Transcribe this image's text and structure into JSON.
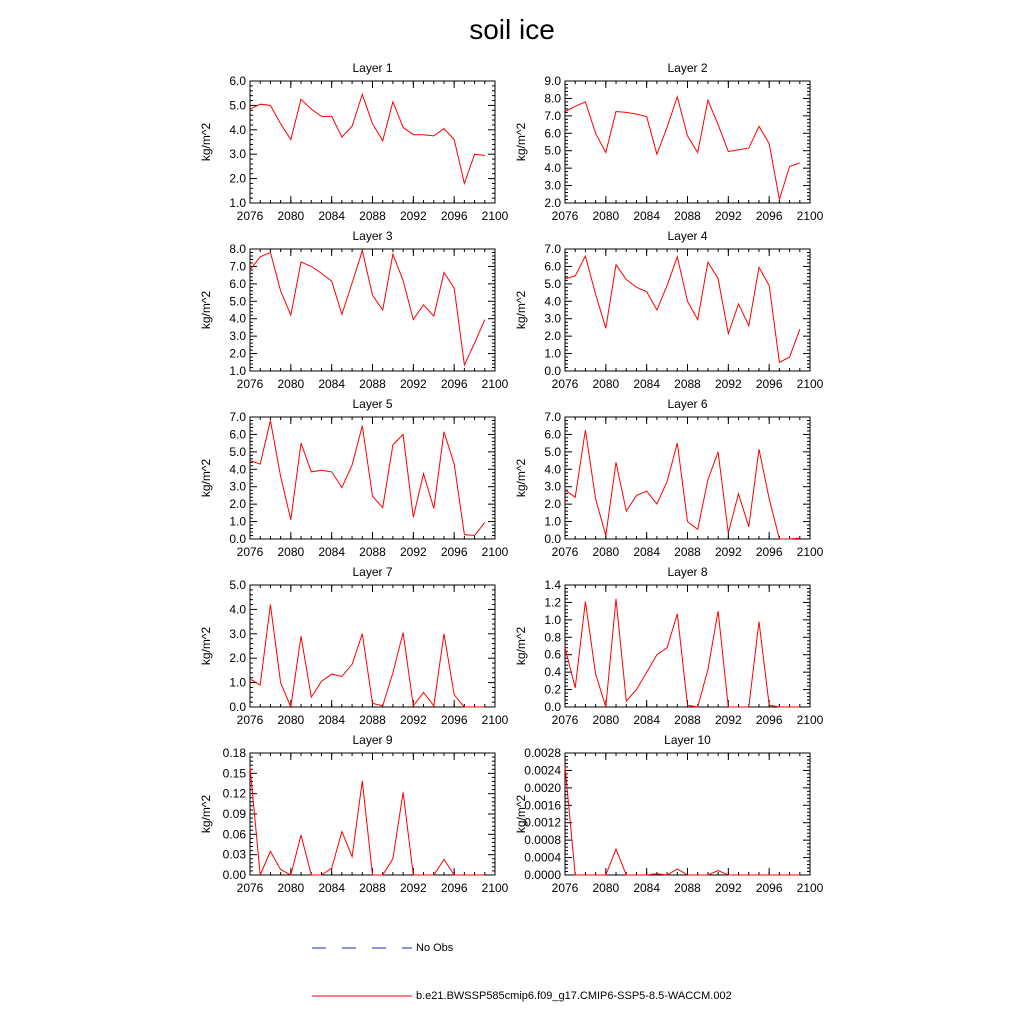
{
  "title": "soil ice",
  "colors": {
    "model": "#ff0000",
    "obs": "#1f2fb8",
    "axis": "#000000"
  },
  "legend": {
    "obs_label": "No Obs",
    "model_label": "b.e21.BWSSP585cmip6.f09_g17.CMIP6-SSP5-8.5-WACCM.002"
  },
  "x_ticks": [
    "2076",
    "2080",
    "2084",
    "2088",
    "2092",
    "2096",
    "2100"
  ],
  "chart_data": [
    {
      "type": "line",
      "title": "Layer 1",
      "ylabel": "kg/m^2",
      "xlim": [
        2076,
        2100
      ],
      "ylim": [
        1,
        6
      ],
      "yticks": [
        1,
        2,
        3,
        4,
        5,
        6
      ],
      "ytick_labels": [
        "1.0",
        "2.0",
        "3.0",
        "4.0",
        "5.0",
        "6.0"
      ],
      "x": [
        2076,
        2077,
        2078,
        2079,
        2080,
        2081,
        2082,
        2083,
        2084,
        2085,
        2086,
        2087,
        2088,
        2089,
        2090,
        2091,
        2092,
        2093,
        2094,
        2095,
        2096,
        2097,
        2098,
        2099
      ],
      "values": [
        4.85,
        5.05,
        5.0,
        4.25,
        3.6,
        5.25,
        4.85,
        4.55,
        4.55,
        3.7,
        4.15,
        5.45,
        4.25,
        3.55,
        5.15,
        4.1,
        3.8,
        3.8,
        3.75,
        4.05,
        3.6,
        1.8,
        3.0,
        2.95
      ]
    },
    {
      "type": "line",
      "title": "Layer 2",
      "ylabel": "kg/m^2",
      "xlim": [
        2076,
        2100
      ],
      "ylim": [
        2,
        9
      ],
      "yticks": [
        2,
        3,
        4,
        5,
        6,
        7,
        8,
        9
      ],
      "ytick_labels": [
        "2.0",
        "3.0",
        "4.0",
        "5.0",
        "6.0",
        "7.0",
        "8.0",
        "9.0"
      ],
      "x": [
        2076,
        2077,
        2078,
        2079,
        2080,
        2081,
        2082,
        2083,
        2084,
        2085,
        2086,
        2087,
        2088,
        2089,
        2090,
        2091,
        2092,
        2093,
        2094,
        2095,
        2096,
        2097,
        2098,
        2099
      ],
      "values": [
        7.25,
        7.55,
        7.8,
        6.0,
        4.9,
        7.25,
        7.2,
        7.1,
        6.95,
        4.8,
        6.35,
        8.1,
        5.85,
        4.9,
        7.9,
        6.5,
        4.95,
        5.05,
        5.15,
        6.4,
        5.4,
        2.2,
        4.1,
        4.3
      ]
    },
    {
      "type": "line",
      "title": "Layer 3",
      "ylabel": "kg/m^2",
      "xlim": [
        2076,
        2100
      ],
      "ylim": [
        1,
        8
      ],
      "yticks": [
        1,
        2,
        3,
        4,
        5,
        6,
        7,
        8
      ],
      "ytick_labels": [
        "1.0",
        "2.0",
        "3.0",
        "4.0",
        "5.0",
        "6.0",
        "7.0",
        "8.0"
      ],
      "x": [
        2076,
        2077,
        2078,
        2079,
        2080,
        2081,
        2082,
        2083,
        2084,
        2085,
        2086,
        2087,
        2088,
        2089,
        2090,
        2091,
        2092,
        2093,
        2094,
        2095,
        2096,
        2097,
        2098,
        2099
      ],
      "values": [
        6.8,
        7.55,
        7.8,
        5.6,
        4.2,
        7.25,
        7.0,
        6.6,
        6.15,
        4.25,
        6.05,
        7.9,
        5.35,
        4.5,
        7.7,
        6.2,
        3.95,
        4.8,
        4.15,
        6.65,
        5.75,
        1.35,
        2.6,
        3.95
      ]
    },
    {
      "type": "line",
      "title": "Layer 4",
      "ylabel": "kg/m^2",
      "xlim": [
        2076,
        2100
      ],
      "ylim": [
        0,
        7
      ],
      "yticks": [
        0,
        1,
        2,
        3,
        4,
        5,
        6,
        7
      ],
      "ytick_labels": [
        "0.0",
        "1.0",
        "2.0",
        "3.0",
        "4.0",
        "5.0",
        "6.0",
        "7.0"
      ],
      "x": [
        2076,
        2077,
        2078,
        2079,
        2080,
        2081,
        2082,
        2083,
        2084,
        2085,
        2086,
        2087,
        2088,
        2089,
        2090,
        2091,
        2092,
        2093,
        2094,
        2095,
        2096,
        2097,
        2098,
        2099
      ],
      "values": [
        5.3,
        5.45,
        6.6,
        4.4,
        2.45,
        6.1,
        5.25,
        4.8,
        4.55,
        3.5,
        4.9,
        6.55,
        4.0,
        2.95,
        6.25,
        5.3,
        2.15,
        3.85,
        2.6,
        5.95,
        4.9,
        0.5,
        0.8,
        2.4
      ]
    },
    {
      "type": "line",
      "title": "Layer 5",
      "ylabel": "kg/m^2",
      "xlim": [
        2076,
        2100
      ],
      "ylim": [
        0,
        7
      ],
      "yticks": [
        0,
        1,
        2,
        3,
        4,
        5,
        6,
        7
      ],
      "ytick_labels": [
        "0.0",
        "1.0",
        "2.0",
        "3.0",
        "4.0",
        "5.0",
        "6.0",
        "7.0"
      ],
      "x": [
        2076,
        2077,
        2078,
        2079,
        2080,
        2081,
        2082,
        2083,
        2084,
        2085,
        2086,
        2087,
        2088,
        2089,
        2090,
        2091,
        2092,
        2093,
        2094,
        2095,
        2096,
        2097,
        2098,
        2099
      ],
      "values": [
        4.5,
        4.3,
        6.8,
        3.6,
        1.1,
        5.5,
        3.85,
        3.95,
        3.85,
        2.95,
        4.25,
        6.5,
        2.45,
        1.8,
        5.4,
        6.0,
        1.25,
        3.75,
        1.75,
        6.15,
        4.3,
        0.25,
        0.2,
        0.95
      ]
    },
    {
      "type": "line",
      "title": "Layer 6",
      "ylabel": "kg/m^2",
      "xlim": [
        2076,
        2100
      ],
      "ylim": [
        0,
        7
      ],
      "yticks": [
        0,
        1,
        2,
        3,
        4,
        5,
        6,
        7
      ],
      "ytick_labels": [
        "0.0",
        "1.0",
        "2.0",
        "3.0",
        "4.0",
        "5.0",
        "6.0",
        "7.0"
      ],
      "x": [
        2076,
        2077,
        2078,
        2079,
        2080,
        2081,
        2082,
        2083,
        2084,
        2085,
        2086,
        2087,
        2088,
        2089,
        2090,
        2091,
        2092,
        2093,
        2094,
        2095,
        2096,
        2097,
        2098,
        2099
      ],
      "values": [
        2.8,
        2.4,
        6.25,
        2.3,
        0.2,
        4.4,
        1.6,
        2.5,
        2.75,
        2.0,
        3.3,
        5.5,
        1.0,
        0.55,
        3.4,
        5.0,
        0.35,
        2.6,
        0.7,
        5.15,
        2.3,
        0.0,
        0.0,
        0.05
      ]
    },
    {
      "type": "line",
      "title": "Layer 7",
      "ylabel": "kg/m^2",
      "xlim": [
        2076,
        2100
      ],
      "ylim": [
        0,
        5
      ],
      "yticks": [
        0,
        1,
        2,
        3,
        4,
        5
      ],
      "ytick_labels": [
        "0.0",
        "1.0",
        "2.0",
        "3.0",
        "4.0",
        "5.0"
      ],
      "x": [
        2076,
        2077,
        2078,
        2079,
        2080,
        2081,
        2082,
        2083,
        2084,
        2085,
        2086,
        2087,
        2088,
        2089,
        2090,
        2091,
        2092,
        2093,
        2094,
        2095,
        2096,
        2097,
        2098,
        2099
      ],
      "values": [
        1.15,
        0.9,
        4.2,
        1.0,
        0.0,
        2.9,
        0.4,
        1.05,
        1.35,
        1.25,
        1.75,
        3.0,
        0.15,
        0.05,
        1.4,
        3.05,
        0.05,
        0.6,
        0.05,
        3.0,
        0.5,
        0.0,
        0.0,
        0.0
      ]
    },
    {
      "type": "line",
      "title": "Layer 8",
      "ylabel": "kg/m^2",
      "xlim": [
        2076,
        2100
      ],
      "ylim": [
        0,
        1.4
      ],
      "yticks": [
        0,
        0.2,
        0.4,
        0.6,
        0.8,
        1.0,
        1.2,
        1.4
      ],
      "ytick_labels": [
        "0.0",
        "0.2",
        "0.4",
        "0.6",
        "0.8",
        "1.0",
        "1.2",
        "1.4"
      ],
      "x": [
        2076,
        2077,
        2078,
        2079,
        2080,
        2081,
        2082,
        2083,
        2084,
        2085,
        2086,
        2087,
        2088,
        2089,
        2090,
        2091,
        2092,
        2093,
        2094,
        2095,
        2096,
        2097,
        2098,
        2099
      ],
      "values": [
        0.68,
        0.22,
        1.21,
        0.38,
        0.0,
        1.24,
        0.07,
        0.2,
        0.4,
        0.6,
        0.68,
        1.07,
        0.02,
        0.0,
        0.43,
        1.1,
        0.0,
        0.0,
        0.0,
        0.98,
        0.02,
        0.0,
        0.0,
        0.0
      ]
    },
    {
      "type": "line",
      "title": "Layer 9",
      "ylabel": "kg/m^2",
      "xlim": [
        2076,
        2100
      ],
      "ylim": [
        0,
        0.18
      ],
      "yticks": [
        0,
        0.03,
        0.06,
        0.09,
        0.12,
        0.15,
        0.18
      ],
      "ytick_labels": [
        "0.00",
        "0.03",
        "0.06",
        "0.09",
        "0.12",
        "0.15",
        "0.18"
      ],
      "x": [
        2076,
        2077,
        2078,
        2079,
        2080,
        2081,
        2082,
        2083,
        2084,
        2085,
        2086,
        2087,
        2088,
        2089,
        2090,
        2091,
        2092,
        2093,
        2094,
        2095,
        2096,
        2097,
        2098,
        2099
      ],
      "values": [
        0.16,
        0.0,
        0.035,
        0.008,
        0.0,
        0.059,
        0.0,
        0.0,
        0.01,
        0.064,
        0.027,
        0.139,
        0.0,
        0.0,
        0.024,
        0.122,
        0.0,
        0.0,
        0.0,
        0.023,
        0.0,
        0.0,
        0.0,
        0.0
      ]
    },
    {
      "type": "line",
      "title": "Layer 10",
      "ylabel": "kg/m^2",
      "xlim": [
        2076,
        2100
      ],
      "ylim": [
        0,
        0.0028
      ],
      "yticks": [
        0,
        0.0004,
        0.0008,
        0.0012,
        0.0016,
        0.002,
        0.0024,
        0.0028
      ],
      "ytick_labels": [
        "0.0000",
        "0.0004",
        "0.0008",
        "0.0012",
        "0.0016",
        "0.0020",
        "0.0024",
        "0.0028"
      ],
      "x": [
        2076,
        2077,
        2078,
        2079,
        2080,
        2081,
        2082,
        2083,
        2084,
        2085,
        2086,
        2087,
        2088,
        2089,
        2090,
        2091,
        2092,
        2093,
        2094,
        2095,
        2096,
        2097,
        2098,
        2099
      ],
      "values": [
        0.0025,
        0.0,
        0.0,
        0.0,
        0.0,
        0.0006,
        0.0,
        0.0,
        0.0,
        3e-05,
        0.0,
        0.00014,
        0.0,
        0.0,
        0.0,
        0.0001,
        0.0,
        0.0,
        0.0,
        0.0,
        0.0,
        0.0,
        0.0,
        0.0
      ]
    }
  ]
}
